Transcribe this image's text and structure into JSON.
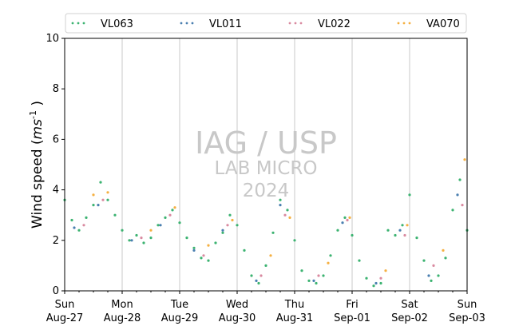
{
  "chart_data": {
    "type": "scatter",
    "ylabel": "Wind speed",
    "ylabel_unit": "ms",
    "ylabel_unit_exp": "-1",
    "ylim": [
      0,
      10
    ],
    "yticks": [
      "0",
      "2",
      "4",
      "6",
      "8",
      "10"
    ],
    "xlim": [
      "2023-08-27",
      "2023-09-03"
    ],
    "xticks": [
      {
        "date": "2023-08-27",
        "day": "Sun",
        "label": "Aug-27"
      },
      {
        "date": "2023-08-28",
        "day": "Mon",
        "label": "Aug-28"
      },
      {
        "date": "2023-08-29",
        "day": "Tue",
        "label": "Aug-29"
      },
      {
        "date": "2023-08-30",
        "day": "Wed",
        "label": "Aug-30"
      },
      {
        "date": "2023-08-31",
        "day": "Thu",
        "label": "Aug-31"
      },
      {
        "date": "2023-09-01",
        "day": "Fri",
        "label": "Sep-01"
      },
      {
        "date": "2023-09-02",
        "day": "Sat",
        "label": "Sep-02"
      },
      {
        "date": "2023-09-03",
        "day": "Sun",
        "label": "Sep-03"
      }
    ],
    "grid": "vertical",
    "legend_position": "top",
    "watermark": [
      "IAG / USP",
      "LAB MICRO",
      "2024"
    ],
    "series": [
      {
        "name": "VL063",
        "color": "#3cb371",
        "points": [
          [
            "2023-08-27 00:00",
            3.6
          ],
          [
            "2023-08-27 03:00",
            2.8
          ],
          [
            "2023-08-27 06:00",
            2.4
          ],
          [
            "2023-08-27 09:00",
            2.9
          ],
          [
            "2023-08-27 12:00",
            3.4
          ],
          [
            "2023-08-27 15:00",
            4.3
          ],
          [
            "2023-08-27 18:00",
            3.6
          ],
          [
            "2023-08-27 21:00",
            3.0
          ],
          [
            "2023-08-28 00:00",
            2.4
          ],
          [
            "2023-08-28 03:00",
            2.0
          ],
          [
            "2023-08-28 06:00",
            2.2
          ],
          [
            "2023-08-28 09:00",
            1.9
          ],
          [
            "2023-08-28 12:00",
            2.1
          ],
          [
            "2023-08-28 15:00",
            2.6
          ],
          [
            "2023-08-28 18:00",
            2.9
          ],
          [
            "2023-08-28 21:00",
            3.2
          ],
          [
            "2023-08-29 00:00",
            2.7
          ],
          [
            "2023-08-29 03:00",
            2.1
          ],
          [
            "2023-08-29 06:00",
            1.7
          ],
          [
            "2023-08-29 09:00",
            1.3
          ],
          [
            "2023-08-29 12:00",
            1.2
          ],
          [
            "2023-08-29 15:00",
            1.9
          ],
          [
            "2023-08-29 18:00",
            2.3
          ],
          [
            "2023-08-29 21:00",
            3.0
          ],
          [
            "2023-08-30 00:00",
            2.6
          ],
          [
            "2023-08-30 03:00",
            1.6
          ],
          [
            "2023-08-30 06:00",
            0.6
          ],
          [
            "2023-08-30 09:00",
            0.3
          ],
          [
            "2023-08-30 12:00",
            1.0
          ],
          [
            "2023-08-30 15:00",
            2.3
          ],
          [
            "2023-08-30 18:00",
            3.6
          ],
          [
            "2023-08-30 21:00",
            3.2
          ],
          [
            "2023-08-31 00:00",
            2.0
          ],
          [
            "2023-08-31 03:00",
            0.8
          ],
          [
            "2023-08-31 06:00",
            0.4
          ],
          [
            "2023-08-31 09:00",
            0.3
          ],
          [
            "2023-08-31 12:00",
            0.6
          ],
          [
            "2023-08-31 15:00",
            1.4
          ],
          [
            "2023-08-31 18:00",
            2.4
          ],
          [
            "2023-08-31 21:00",
            2.9
          ],
          [
            "2023-09-01 00:00",
            2.2
          ],
          [
            "2023-09-01 03:00",
            1.2
          ],
          [
            "2023-09-01 06:00",
            0.5
          ],
          [
            "2023-09-01 09:00",
            0.2
          ],
          [
            "2023-09-01 12:00",
            0.3
          ],
          [
            "2023-09-01 15:00",
            2.4
          ],
          [
            "2023-09-01 18:00",
            2.2
          ],
          [
            "2023-09-01 21:00",
            2.6
          ],
          [
            "2023-09-02 00:00",
            3.8
          ],
          [
            "2023-09-02 03:00",
            2.1
          ],
          [
            "2023-09-02 06:00",
            1.2
          ],
          [
            "2023-09-02 09:00",
            0.4
          ],
          [
            "2023-09-02 12:00",
            0.6
          ],
          [
            "2023-09-02 15:00",
            1.3
          ],
          [
            "2023-09-02 18:00",
            3.2
          ],
          [
            "2023-09-02 21:00",
            4.4
          ],
          [
            "2023-09-03 00:00",
            2.4
          ]
        ]
      },
      {
        "name": "VL011",
        "color": "#4a7fb0",
        "points": [
          [
            "2023-08-27 04:00",
            2.5
          ],
          [
            "2023-08-27 14:00",
            3.4
          ],
          [
            "2023-08-28 04:00",
            2.0
          ],
          [
            "2023-08-28 16:00",
            2.6
          ],
          [
            "2023-08-29 06:00",
            1.6
          ],
          [
            "2023-08-29 18:00",
            2.4
          ],
          [
            "2023-08-30 08:00",
            0.4
          ],
          [
            "2023-08-30 18:00",
            3.4
          ],
          [
            "2023-08-31 08:00",
            0.4
          ],
          [
            "2023-08-31 20:00",
            2.7
          ],
          [
            "2023-09-01 10:00",
            0.3
          ],
          [
            "2023-09-01 20:00",
            2.4
          ],
          [
            "2023-09-02 08:00",
            0.6
          ],
          [
            "2023-09-02 20:00",
            3.8
          ]
        ]
      },
      {
        "name": "VL022",
        "color": "#d98aa0",
        "points": [
          [
            "2023-08-27 08:00",
            2.6
          ],
          [
            "2023-08-27 16:00",
            3.6
          ],
          [
            "2023-08-28 08:00",
            2.1
          ],
          [
            "2023-08-28 20:00",
            3.0
          ],
          [
            "2023-08-29 10:00",
            1.4
          ],
          [
            "2023-08-29 20:00",
            2.6
          ],
          [
            "2023-08-30 10:00",
            0.6
          ],
          [
            "2023-08-30 20:00",
            3.0
          ],
          [
            "2023-08-31 10:00",
            0.6
          ],
          [
            "2023-08-31 22:00",
            2.8
          ],
          [
            "2023-09-01 12:00",
            0.5
          ],
          [
            "2023-09-01 22:00",
            2.2
          ],
          [
            "2023-09-02 10:00",
            1.0
          ],
          [
            "2023-09-02 22:00",
            3.4
          ]
        ]
      },
      {
        "name": "VA070",
        "color": "#f5b041",
        "points": [
          [
            "2023-08-27 12:00",
            3.8
          ],
          [
            "2023-08-27 18:00",
            3.9
          ],
          [
            "2023-08-28 12:00",
            2.4
          ],
          [
            "2023-08-28 22:00",
            3.3
          ],
          [
            "2023-08-29 12:00",
            1.8
          ],
          [
            "2023-08-29 22:00",
            2.8
          ],
          [
            "2023-08-30 14:00",
            1.4
          ],
          [
            "2023-08-30 22:00",
            2.9
          ],
          [
            "2023-08-31 14:00",
            1.1
          ],
          [
            "2023-08-31 23:00",
            2.9
          ],
          [
            "2023-09-01 14:00",
            0.8
          ],
          [
            "2023-09-01 23:00",
            2.6
          ],
          [
            "2023-09-02 14:00",
            1.6
          ],
          [
            "2023-09-02 23:00",
            5.2
          ]
        ]
      }
    ]
  }
}
